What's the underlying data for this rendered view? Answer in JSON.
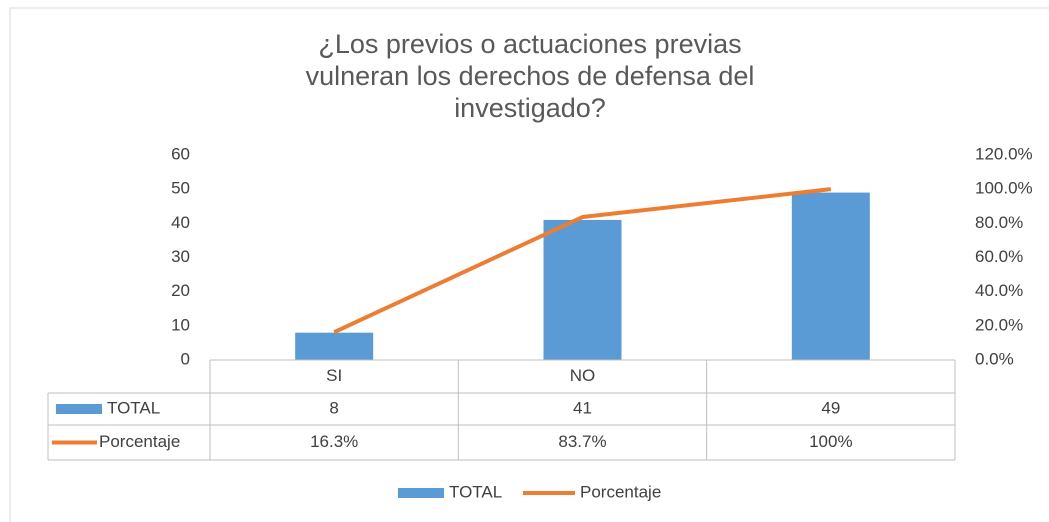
{
  "chart_data": {
    "type": "bar-line",
    "title": "¿Los previos o actuaciones previas vulneran  los derechos de defensa del investigado?",
    "categories": [
      "SI",
      "NO",
      null
    ],
    "series": [
      {
        "name": "TOTAL",
        "color": "#5b9bd5",
        "type": "bar",
        "values": [
          8,
          41,
          49
        ]
      },
      {
        "name": "Porcentaje",
        "color": "#ed7d31",
        "type": "line",
        "axis": "y2",
        "values": [
          16.3,
          83.7,
          100
        ],
        "value_labels": [
          "16.3%",
          "83.7%",
          "100%"
        ]
      }
    ],
    "ylim": [
      0,
      60
    ],
    "yticks": [
      0,
      10,
      20,
      30,
      40,
      50,
      60
    ],
    "y2lim": [
      0,
      120
    ],
    "y2ticks": [
      {
        "value": 0,
        "label": "0.0%"
      },
      {
        "value": 20,
        "label": "20.0%"
      },
      {
        "value": 40,
        "label": "40.0%"
      },
      {
        "value": 60,
        "label": "60.0%"
      },
      {
        "value": 80,
        "label": "80.0%"
      },
      {
        "value": 100,
        "label": "100.0%"
      },
      {
        "value": 120,
        "label": "120.0%"
      }
    ],
    "legend": "bottom",
    "grid": false
  }
}
